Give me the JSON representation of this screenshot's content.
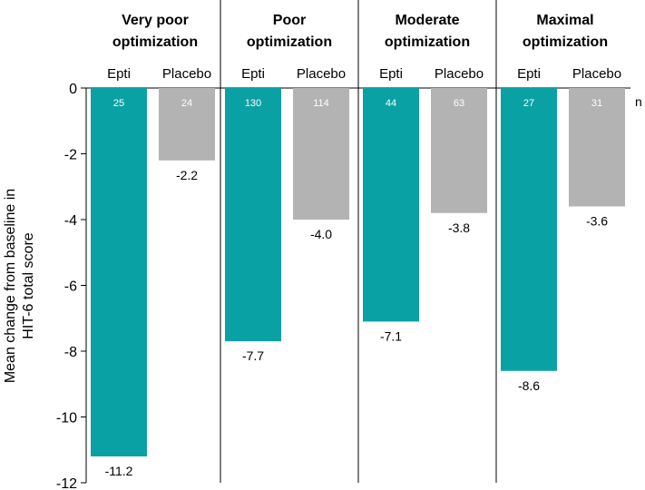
{
  "chart_data": {
    "type": "bar",
    "ylabel": "Mean change from baseline in HIT-6 total score",
    "ylim": [
      -12,
      0
    ],
    "yticks": [
      0,
      -2,
      -4,
      -6,
      -8,
      -10,
      -12
    ],
    "n_axis_label": "n",
    "groups": [
      {
        "title": [
          "Very poor",
          "optimization"
        ],
        "bars": [
          {
            "label": "Epti",
            "value": -11.2,
            "value_label": "-11.2",
            "n": "25",
            "color": "#0aa1a5"
          },
          {
            "label": "Placebo",
            "value": -2.2,
            "value_label": "-2.2",
            "n": "24",
            "color": "#b3b3b3"
          }
        ]
      },
      {
        "title": [
          "Poor",
          "optimization"
        ],
        "bars": [
          {
            "label": "Epti",
            "value": -7.7,
            "value_label": "-7.7",
            "n": "130",
            "color": "#0aa1a5"
          },
          {
            "label": "Placebo",
            "value": -4.0,
            "value_label": "-4.0",
            "n": "114",
            "color": "#b3b3b3"
          }
        ]
      },
      {
        "title": [
          "Moderate",
          "optimization"
        ],
        "bars": [
          {
            "label": "Epti",
            "value": -7.1,
            "value_label": "-7.1",
            "n": "44",
            "color": "#0aa1a5"
          },
          {
            "label": "Placebo",
            "value": -3.8,
            "value_label": "-3.8",
            "n": "63",
            "color": "#b3b3b3"
          }
        ]
      },
      {
        "title": [
          "Maximal",
          "optimization"
        ],
        "bars": [
          {
            "label": "Epti",
            "value": -8.6,
            "value_label": "-8.6",
            "n": "27",
            "color": "#0aa1a5"
          },
          {
            "label": "Placebo",
            "value": -3.6,
            "value_label": "-3.6",
            "n": "31",
            "color": "#b3b3b3"
          }
        ]
      }
    ]
  }
}
